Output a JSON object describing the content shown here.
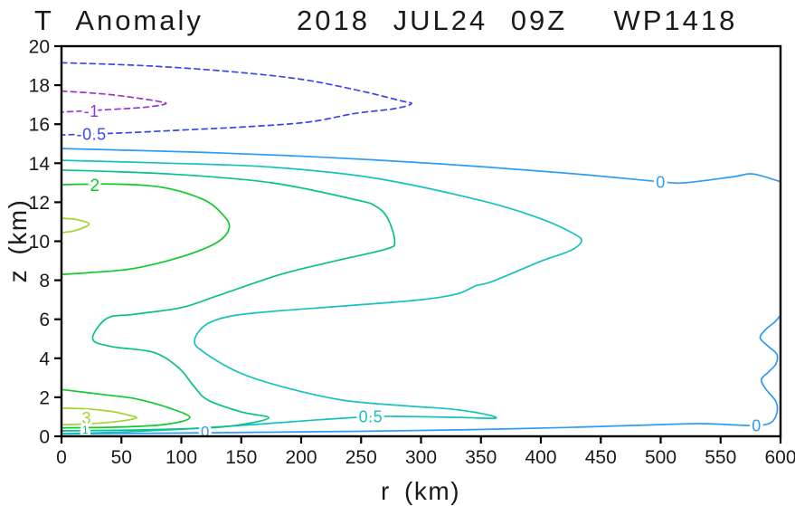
{
  "chart_data": {
    "type": "contour",
    "title_left": "T Anomaly",
    "title_right": "2018 JUL24 09Z  WP1418",
    "xlabel": "r (km)",
    "ylabel": "z (km)",
    "xlim": [
      0,
      600
    ],
    "ylim": [
      0,
      20
    ],
    "xticks": [
      0,
      50,
      100,
      150,
      200,
      250,
      300,
      350,
      400,
      450,
      500,
      550,
      600
    ],
    "yticks": [
      0,
      2,
      4,
      6,
      8,
      10,
      12,
      14,
      16,
      18,
      20
    ],
    "grid": false,
    "levels": [
      -1,
      -0.5,
      0,
      0.5,
      1,
      2,
      3
    ],
    "level_colors": {
      "-1": "#9a33cc",
      "-0.5": "#3c46e8",
      "0": "#2e9bf5",
      "0.5": "#15c3bc",
      "1": "#06c285",
      "2": "#12c92c",
      "3": "#a2d32f"
    },
    "contours": [
      {
        "level": -0.5,
        "color": "#3c46e8",
        "dashed": true,
        "points": [
          [
            0,
            19.15
          ],
          [
            70,
            19.0
          ],
          [
            140,
            18.7
          ],
          [
            200,
            18.3
          ],
          [
            250,
            17.7
          ],
          [
            283,
            17.2
          ],
          [
            292,
            17.05
          ],
          [
            278,
            16.8
          ],
          [
            245,
            16.55
          ],
          [
            205,
            16.1
          ],
          [
            150,
            15.85
          ],
          [
            100,
            15.7
          ],
          [
            50,
            15.55
          ],
          [
            0,
            15.45
          ]
        ]
      },
      {
        "level": -1,
        "color": "#9a33cc",
        "dashed": true,
        "points": [
          [
            0,
            17.7
          ],
          [
            35,
            17.55
          ],
          [
            62,
            17.35
          ],
          [
            80,
            17.18
          ],
          [
            87,
            17.05
          ],
          [
            72,
            16.88
          ],
          [
            48,
            16.78
          ],
          [
            25,
            16.7
          ],
          [
            0,
            16.62
          ]
        ]
      },
      {
        "level": 0,
        "color": "#2e9bf5",
        "dashed": false,
        "points": [
          [
            0,
            14.75
          ],
          [
            120,
            14.55
          ],
          [
            220,
            14.3
          ],
          [
            320,
            13.95
          ],
          [
            420,
            13.5
          ],
          [
            500,
            13.05
          ],
          [
            520,
            13.0
          ],
          [
            560,
            13.3
          ],
          [
            577,
            13.45
          ],
          [
            600,
            13.05
          ]
        ]
      },
      {
        "level": 0,
        "color": "#2e9bf5",
        "dashed": false,
        "points": [
          [
            0,
            0.12
          ],
          [
            120,
            0.18
          ],
          [
            240,
            0.25
          ],
          [
            330,
            0.33
          ],
          [
            420,
            0.45
          ],
          [
            480,
            0.56
          ],
          [
            530,
            0.65
          ],
          [
            557,
            0.6
          ],
          [
            580,
            0.55
          ],
          [
            592,
            0.7
          ],
          [
            597,
            1.2
          ],
          [
            596,
            1.8
          ],
          [
            588,
            2.4
          ],
          [
            584,
            2.9
          ],
          [
            590,
            3.3
          ],
          [
            596,
            3.7
          ],
          [
            597,
            4.2
          ],
          [
            590,
            4.6
          ],
          [
            583,
            5.05
          ],
          [
            588,
            5.5
          ],
          [
            595,
            5.85
          ],
          [
            600,
            6.2
          ]
        ]
      },
      {
        "level": 0.5,
        "color": "#15c3bc",
        "dashed": false,
        "points": [
          [
            0,
            14.15
          ],
          [
            90,
            14.0
          ],
          [
            175,
            13.8
          ],
          [
            260,
            13.25
          ],
          [
            349,
            12.1
          ],
          [
            400,
            11.15
          ],
          [
            427,
            10.4
          ],
          [
            434,
            10.0
          ],
          [
            424,
            9.5
          ],
          [
            401,
            9.0
          ],
          [
            360,
            7.95
          ],
          [
            346,
            7.72
          ],
          [
            330,
            7.3
          ],
          [
            300,
            7.0
          ],
          [
            240,
            6.7
          ],
          [
            175,
            6.4
          ],
          [
            140,
            6.15
          ],
          [
            120,
            5.7
          ],
          [
            111,
            4.9
          ],
          [
            118,
            4.35
          ],
          [
            147,
            3.3
          ],
          [
            183,
            2.56
          ],
          [
            235,
            1.85
          ],
          [
            290,
            1.55
          ],
          [
            324,
            1.4
          ],
          [
            352,
            1.15
          ],
          [
            362,
            0.93
          ],
          [
            330,
            0.97
          ],
          [
            280,
            1.02
          ],
          [
            258,
            1.0
          ],
          [
            215,
            0.85
          ],
          [
            165,
            0.62
          ],
          [
            110,
            0.4
          ],
          [
            50,
            0.22
          ],
          [
            0,
            0.14
          ]
        ]
      },
      {
        "level": 1,
        "color": "#06c285",
        "dashed": false,
        "points": [
          [
            0,
            13.65
          ],
          [
            90,
            13.45
          ],
          [
            175,
            13.0
          ],
          [
            247,
            12.1
          ],
          [
            262,
            11.8
          ],
          [
            272,
            11.2
          ],
          [
            278,
            10.0
          ],
          [
            271,
            9.6
          ],
          [
            229,
            9.0
          ],
          [
            183,
            8.3
          ],
          [
            130,
            7.2
          ],
          [
            100,
            6.6
          ],
          [
            60,
            6.25
          ],
          [
            38,
            6.05
          ],
          [
            26,
            5.0
          ],
          [
            42,
            4.6
          ],
          [
            77,
            4.3
          ],
          [
            98,
            3.5
          ],
          [
            110,
            2.6
          ],
          [
            122,
            1.86
          ],
          [
            150,
            1.25
          ],
          [
            173,
            0.95
          ],
          [
            150,
            0.6
          ],
          [
            120,
            0.42
          ],
          [
            60,
            0.32
          ],
          [
            0,
            0.28
          ]
        ]
      },
      {
        "level": 2,
        "color": "#12c92c",
        "dashed": false,
        "points": [
          [
            0,
            12.9
          ],
          [
            45,
            12.93
          ],
          [
            85,
            12.75
          ],
          [
            118,
            12.15
          ],
          [
            134,
            11.4
          ],
          [
            140,
            10.7
          ],
          [
            130,
            9.95
          ],
          [
            100,
            9.2
          ],
          [
            60,
            8.6
          ],
          [
            25,
            8.4
          ],
          [
            0,
            8.3
          ]
        ]
      },
      {
        "level": 2,
        "color": "#12c92c",
        "dashed": false,
        "points": [
          [
            0,
            2.4
          ],
          [
            40,
            2.1
          ],
          [
            62,
            1.92
          ],
          [
            90,
            1.45
          ],
          [
            107,
            0.95
          ],
          [
            85,
            0.6
          ],
          [
            45,
            0.47
          ],
          [
            0,
            0.43
          ]
        ]
      },
      {
        "level": 3,
        "color": "#a2d32f",
        "dashed": false,
        "points": [
          [
            0,
            11.18
          ],
          [
            12,
            11.12
          ],
          [
            23,
            10.88
          ],
          [
            12,
            10.55
          ],
          [
            0,
            10.44
          ]
        ]
      },
      {
        "level": 3,
        "color": "#a2d32f",
        "dashed": false,
        "points": [
          [
            0,
            1.45
          ],
          [
            22,
            1.4
          ],
          [
            42,
            1.27
          ],
          [
            56,
            1.08
          ],
          [
            62,
            0.93
          ],
          [
            42,
            0.73
          ],
          [
            15,
            0.62
          ],
          [
            0,
            0.6
          ]
        ]
      }
    ],
    "contour_labels": [
      {
        "text": "-1",
        "r": 25,
        "z": 16.68,
        "color": "#9a33cc",
        "size": 18
      },
      {
        "text": "-0.5",
        "r": 25,
        "z": 15.5,
        "color": "#3c46e8",
        "size": 18
      },
      {
        "text": "2",
        "r": 28,
        "z": 12.9,
        "color": "#12c92c",
        "size": 19
      },
      {
        "text": "3",
        "r": 21,
        "z": 0.95,
        "color": "#a2d32f",
        "size": 18
      },
      {
        "text": "1",
        "r": 20,
        "z": 0.33,
        "color": "#06c285",
        "size": 12
      },
      {
        "text": "0.5",
        "r": 258,
        "z": 1.02,
        "color": "#15c3bc",
        "size": 18
      },
      {
        "text": "0",
        "r": 120,
        "z": 0.25,
        "color": "#2e9bf5",
        "size": 17
      },
      {
        "text": "0",
        "r": 500,
        "z": 13.05,
        "color": "#2e9bf5",
        "size": 18
      },
      {
        "text": "0",
        "r": 580,
        "z": 0.55,
        "color": "#2e9bf5",
        "size": 18
      }
    ]
  }
}
